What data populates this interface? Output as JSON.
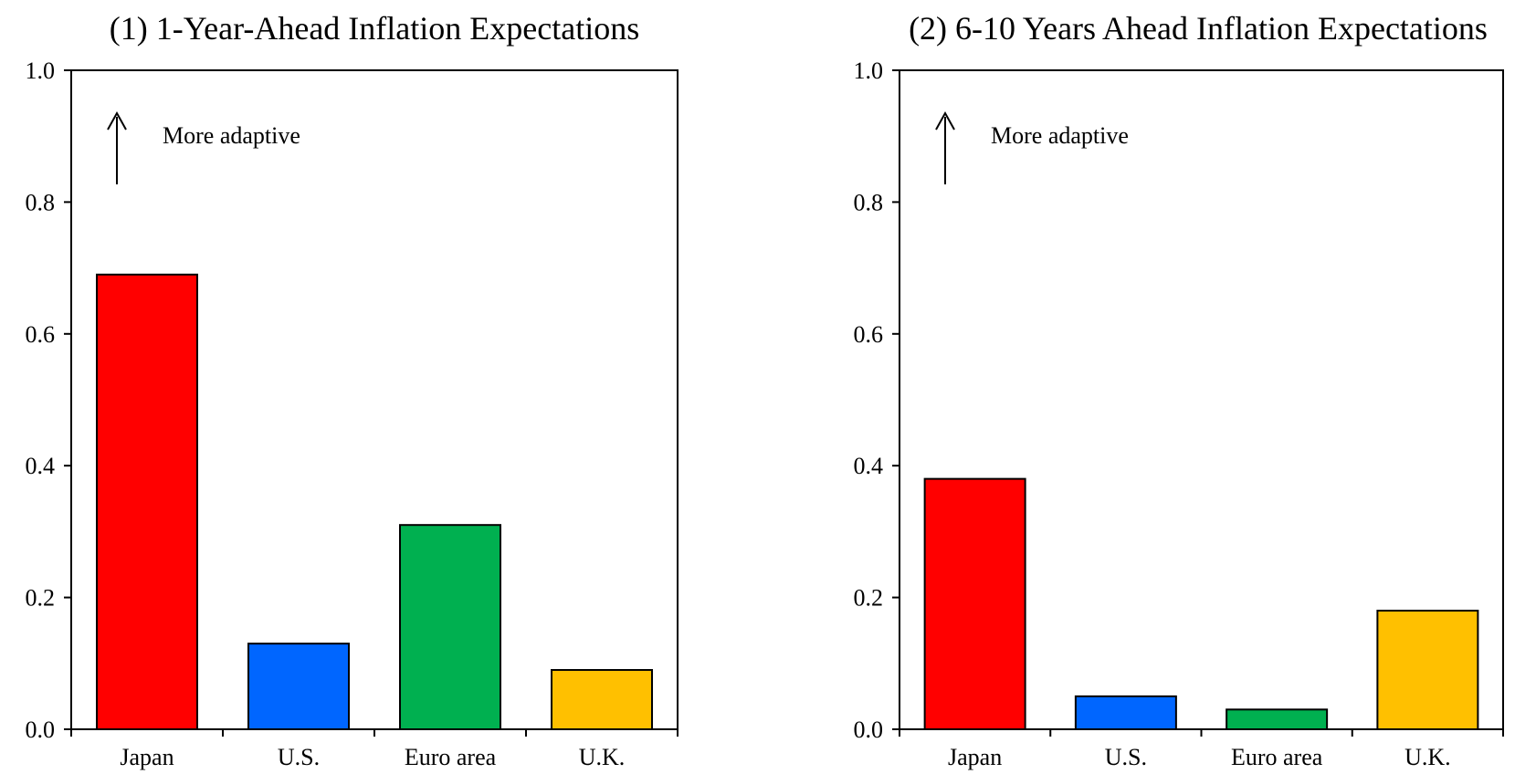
{
  "chart_data": [
    {
      "type": "bar",
      "title": "(1) 1-Year-Ahead Inflation Expectations",
      "categories": [
        "Japan",
        "U.S.",
        "Euro area",
        "U.K."
      ],
      "values": [
        0.69,
        0.13,
        0.31,
        0.09
      ],
      "colors": [
        "#ff0000",
        "#0066ff",
        "#00b050",
        "#ffc000"
      ],
      "ylim": [
        0,
        1.0
      ],
      "yticks": [
        "0.0",
        "0.2",
        "0.4",
        "0.6",
        "0.8",
        "1.0"
      ],
      "annotation": "More adaptive",
      "grid": false
    },
    {
      "type": "bar",
      "title": "(2) 6-10 Years Ahead Inflation Expectations",
      "categories": [
        "Japan",
        "U.S.",
        "Euro area",
        "U.K."
      ],
      "values": [
        0.38,
        0.05,
        0.03,
        0.18
      ],
      "colors": [
        "#ff0000",
        "#0066ff",
        "#00b050",
        "#ffc000"
      ],
      "ylim": [
        0,
        1.0
      ],
      "yticks": [
        "0.0",
        "0.2",
        "0.4",
        "0.6",
        "0.8",
        "1.0"
      ],
      "annotation": "More adaptive",
      "grid": false
    }
  ]
}
